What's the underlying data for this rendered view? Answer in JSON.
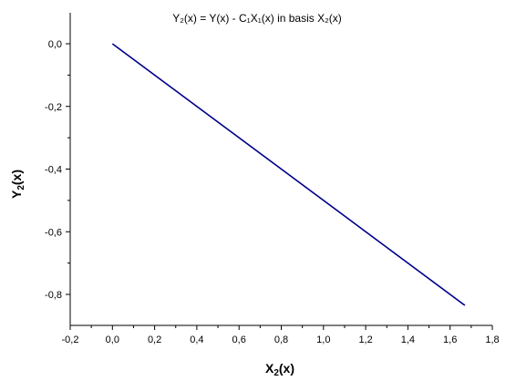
{
  "chart_data": {
    "type": "line",
    "title": "Y₂(x) = Y(x) - C₁X₁(x) in basis  X₂(x)",
    "xlabel": {
      "main": "X",
      "sub": "2",
      "suffix": "(x)"
    },
    "ylabel": {
      "main": "Y",
      "sub": "2",
      "suffix": "(x)"
    },
    "xlim": [
      -0.2,
      1.8
    ],
    "ylim": [
      -0.9,
      0.1
    ],
    "x_ticks": [
      -0.2,
      0.0,
      0.2,
      0.4,
      0.6,
      0.8,
      1.0,
      1.2,
      1.4,
      1.6,
      1.8
    ],
    "x_tick_labels": [
      "-0,2",
      "0,0",
      "0,2",
      "0,4",
      "0,6",
      "0,8",
      "1,0",
      "1,2",
      "1,4",
      "1,6",
      "1,8"
    ],
    "y_ticks": [
      0.0,
      -0.2,
      -0.4,
      -0.6,
      -0.8
    ],
    "y_tick_labels": [
      "0,0",
      "-0,2",
      "-0,4",
      "-0,6",
      "-0,8"
    ],
    "grid": false,
    "series": [
      {
        "color": "#00008b",
        "x": [
          0.0,
          1.67
        ],
        "y": [
          0.0,
          -0.835
        ]
      }
    ]
  }
}
